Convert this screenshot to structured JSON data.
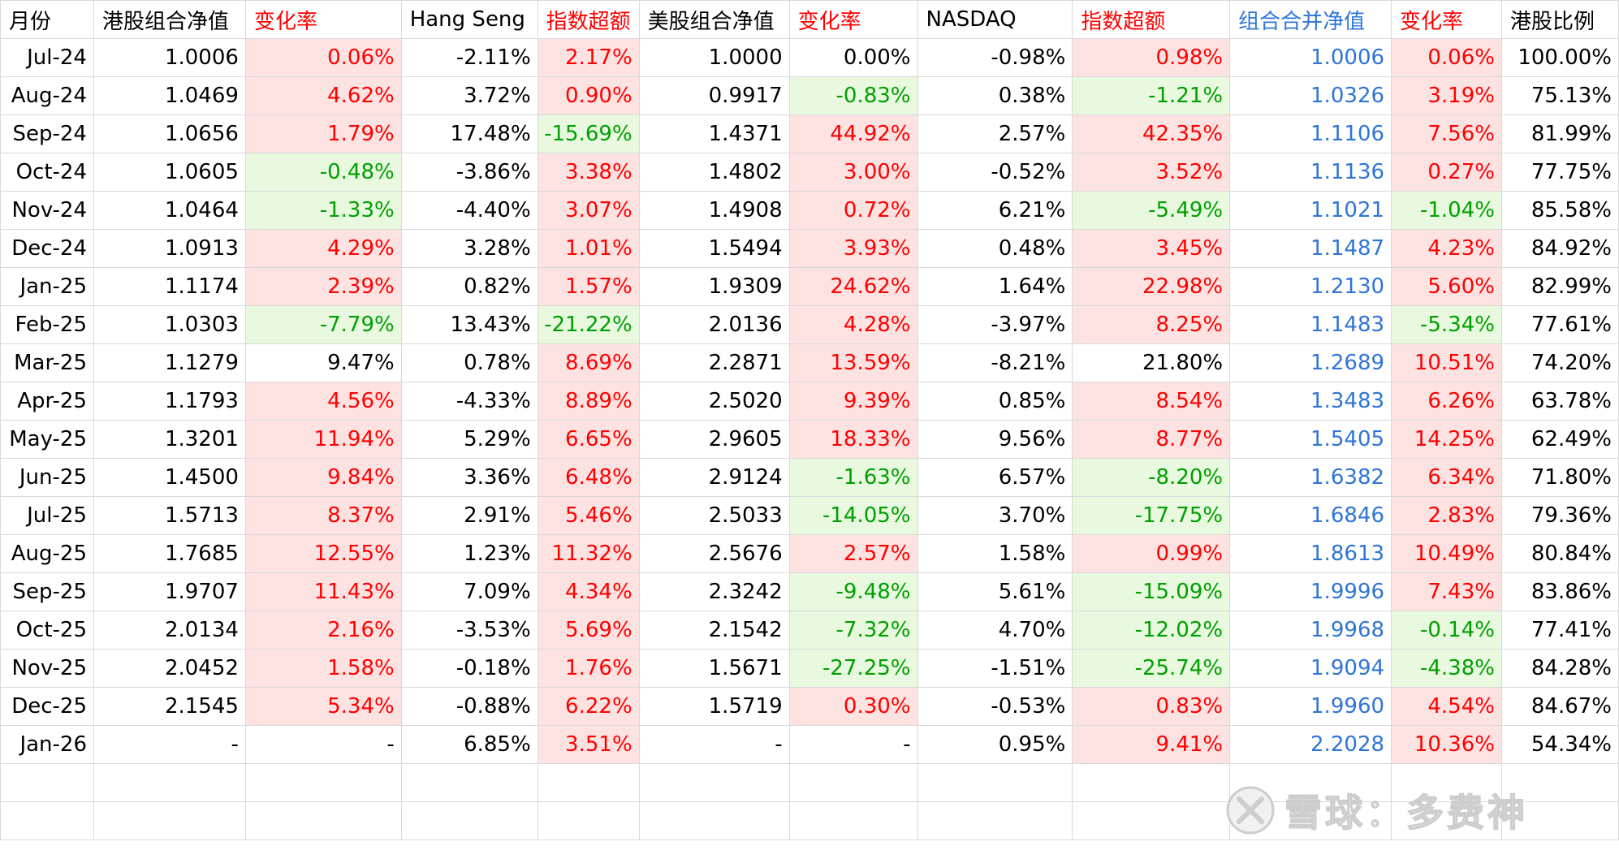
{
  "headers": [
    "月份",
    "港股组合净值",
    "变化率",
    "Hang Seng",
    "指数超额",
    "美股组合净值",
    "变化率",
    "NASDAQ",
    "指数超额",
    "组合合并净值",
    "变化率",
    "港股比例"
  ],
  "rows": [
    [
      "Jul-24",
      "1.0006",
      "0.06%",
      "-2.11%",
      "2.17%",
      "1.0000",
      "0.00%",
      "-0.98%",
      "0.98%",
      "1.0006",
      "0.06%",
      "100.00%"
    ],
    [
      "Aug-24",
      "1.0469",
      "4.62%",
      "3.72%",
      "0.90%",
      "0.9917",
      "-0.83%",
      "0.38%",
      "-1.21%",
      "1.0326",
      "3.19%",
      "75.13%"
    ],
    [
      "Sep-24",
      "1.0656",
      "1.79%",
      "17.48%",
      "-15.69%",
      "1.4371",
      "44.92%",
      "2.57%",
      "42.35%",
      "1.1106",
      "7.56%",
      "81.99%"
    ],
    [
      "Oct-24",
      "1.0605",
      "-0.48%",
      "-3.86%",
      "3.38%",
      "1.4802",
      "3.00%",
      "-0.52%",
      "3.52%",
      "1.1136",
      "0.27%",
      "77.75%"
    ],
    [
      "Nov-24",
      "1.0464",
      "-1.33%",
      "-4.40%",
      "3.07%",
      "1.4908",
      "0.72%",
      "6.21%",
      "-5.49%",
      "1.1021",
      "-1.04%",
      "85.58%"
    ],
    [
      "Dec-24",
      "1.0913",
      "4.29%",
      "3.28%",
      "1.01%",
      "1.5494",
      "3.93%",
      "0.48%",
      "3.45%",
      "1.1487",
      "4.23%",
      "84.92%"
    ],
    [
      "Jan-25",
      "1.1174",
      "2.39%",
      "0.82%",
      "1.57%",
      "1.9309",
      "24.62%",
      "1.64%",
      "22.98%",
      "1.2130",
      "5.60%",
      "82.99%"
    ],
    [
      "Feb-25",
      "1.0303",
      "-7.79%",
      "13.43%",
      "-21.22%",
      "2.0136",
      "4.28%",
      "-3.97%",
      "8.25%",
      "1.1483",
      "-5.34%",
      "77.61%"
    ],
    [
      "Mar-25",
      "1.1279",
      "9.47%",
      "0.78%",
      "8.69%",
      "2.2871",
      "13.59%",
      "-8.21%",
      "21.80%",
      "1.2689",
      "10.51%",
      "74.20%"
    ],
    [
      "Apr-25",
      "1.1793",
      "4.56%",
      "-4.33%",
      "8.89%",
      "2.5020",
      "9.39%",
      "0.85%",
      "8.54%",
      "1.3483",
      "6.26%",
      "63.78%"
    ],
    [
      "May-25",
      "1.3201",
      "11.94%",
      "5.29%",
      "6.65%",
      "2.9605",
      "18.33%",
      "9.56%",
      "8.77%",
      "1.5405",
      "14.25%",
      "62.49%"
    ],
    [
      "Jun-25",
      "1.4500",
      "9.84%",
      "3.36%",
      "6.48%",
      "2.9124",
      "-1.63%",
      "6.57%",
      "-8.20%",
      "1.6382",
      "6.34%",
      "71.80%"
    ],
    [
      "Jul-25",
      "1.5713",
      "8.37%",
      "2.91%",
      "5.46%",
      "2.5033",
      "-14.05%",
      "3.70%",
      "-17.75%",
      "1.6846",
      "2.83%",
      "79.36%"
    ],
    [
      "Aug-25",
      "1.7685",
      "12.55%",
      "1.23%",
      "11.32%",
      "2.5676",
      "2.57%",
      "1.58%",
      "0.99%",
      "1.8613",
      "10.49%",
      "80.84%"
    ],
    [
      "Sep-25",
      "1.9707",
      "11.43%",
      "7.09%",
      "4.34%",
      "2.3242",
      "-9.48%",
      "5.61%",
      "-15.09%",
      "1.9996",
      "7.43%",
      "83.86%"
    ],
    [
      "Oct-25",
      "2.0134",
      "2.16%",
      "-3.53%",
      "5.69%",
      "2.1542",
      "-7.32%",
      "4.70%",
      "-12.02%",
      "1.9968",
      "-0.14%",
      "77.41%"
    ],
    [
      "Nov-25",
      "2.0452",
      "1.58%",
      "-0.18%",
      "1.76%",
      "1.5671",
      "-27.25%",
      "-1.51%",
      "-25.74%",
      "1.9094",
      "-4.38%",
      "84.28%"
    ],
    [
      "Dec-25",
      "2.1545",
      "5.34%",
      "-0.88%",
      "6.22%",
      "1.5719",
      "0.30%",
      "-0.53%",
      "0.83%",
      "1.9960",
      "4.54%",
      "84.67%"
    ],
    [
      "Jan-26",
      "-",
      "-",
      "6.85%",
      "3.51%",
      "-",
      "-",
      "0.95%",
      "9.41%",
      "2.2028",
      "10.36%",
      "54.34%"
    ]
  ],
  "styles": [
    [
      "",
      "",
      "red bgR",
      "",
      "red bgR",
      "",
      "",
      "",
      "red bgR",
      "blu",
      "red bgR",
      ""
    ],
    [
      "",
      "",
      "red bgR",
      "",
      "red bgR",
      "",
      "grn bgG",
      "",
      "grn bgG",
      "blu",
      "red bgR",
      ""
    ],
    [
      "",
      "",
      "red bgR",
      "",
      "grn bgG",
      "",
      "red bgR",
      "",
      "red bgR",
      "blu",
      "red bgR",
      ""
    ],
    [
      "",
      "",
      "grn bgG",
      "",
      "red bgR",
      "",
      "red bgR",
      "",
      "red bgR",
      "blu",
      "red bgR",
      ""
    ],
    [
      "",
      "",
      "grn bgG",
      "",
      "red bgR",
      "",
      "red bgR",
      "",
      "grn bgG",
      "blu",
      "grn bgG",
      ""
    ],
    [
      "",
      "",
      "red bgR",
      "",
      "red bgR",
      "",
      "red bgR",
      "",
      "red bgR",
      "blu",
      "red bgR",
      ""
    ],
    [
      "",
      "",
      "red bgR",
      "",
      "red bgR",
      "",
      "red bgR",
      "",
      "red bgR",
      "blu",
      "red bgR",
      ""
    ],
    [
      "",
      "",
      "grn bgG",
      "",
      "grn bgG",
      "",
      "red bgR",
      "",
      "red bgR",
      "blu",
      "grn bgG",
      ""
    ],
    [
      "",
      "",
      "",
      "",
      "red bgR",
      "",
      "red bgR",
      "",
      "",
      "blu",
      "red bgR",
      ""
    ],
    [
      "",
      "",
      "red bgR",
      "",
      "red bgR",
      "",
      "red bgR",
      "",
      "red bgR",
      "blu",
      "red bgR",
      ""
    ],
    [
      "",
      "",
      "red bgR",
      "",
      "red bgR",
      "",
      "red bgR",
      "",
      "red bgR",
      "blu",
      "red bgR",
      ""
    ],
    [
      "",
      "",
      "red bgR",
      "",
      "red bgR",
      "",
      "grn bgG",
      "",
      "grn bgG",
      "blu",
      "red bgR",
      ""
    ],
    [
      "",
      "",
      "red bgR",
      "",
      "red bgR",
      "",
      "grn bgG",
      "",
      "grn bgG",
      "blu",
      "red bgR",
      ""
    ],
    [
      "",
      "",
      "red bgR",
      "",
      "red bgR",
      "",
      "red bgR",
      "",
      "red bgR",
      "blu",
      "red bgR",
      ""
    ],
    [
      "",
      "",
      "red bgR",
      "",
      "red bgR",
      "",
      "grn bgG",
      "",
      "grn bgG",
      "blu",
      "red bgR",
      ""
    ],
    [
      "",
      "",
      "red bgR",
      "",
      "red bgR",
      "",
      "grn bgG",
      "",
      "grn bgG",
      "blu",
      "grn bgG",
      ""
    ],
    [
      "",
      "",
      "red bgR",
      "",
      "red bgR",
      "",
      "grn bgG",
      "",
      "grn bgG",
      "blu",
      "grn bgG",
      ""
    ],
    [
      "",
      "",
      "red bgR",
      "",
      "red bgR",
      "",
      "red bgR",
      "",
      "red bgR",
      "blu",
      "red bgR",
      ""
    ],
    [
      "",
      "",
      "",
      "",
      "red bgR",
      "",
      "",
      "",
      "red bgR",
      "blu",
      "red bgR",
      ""
    ]
  ],
  "header_styles": [
    "",
    "",
    "h-red",
    "",
    "h-red",
    "",
    "h-red",
    "",
    "h-red",
    "h-blu",
    "h-red",
    ""
  ],
  "watermark": {
    "text": "雪球：多费神",
    "icon": "snowball-logo-icon"
  },
  "colors": {
    "positive": "#ff0000",
    "negative": "#00a000",
    "combined": "#2e75d8",
    "positive_bg": "#fde2e2",
    "negative_bg": "#e8f9e0"
  }
}
